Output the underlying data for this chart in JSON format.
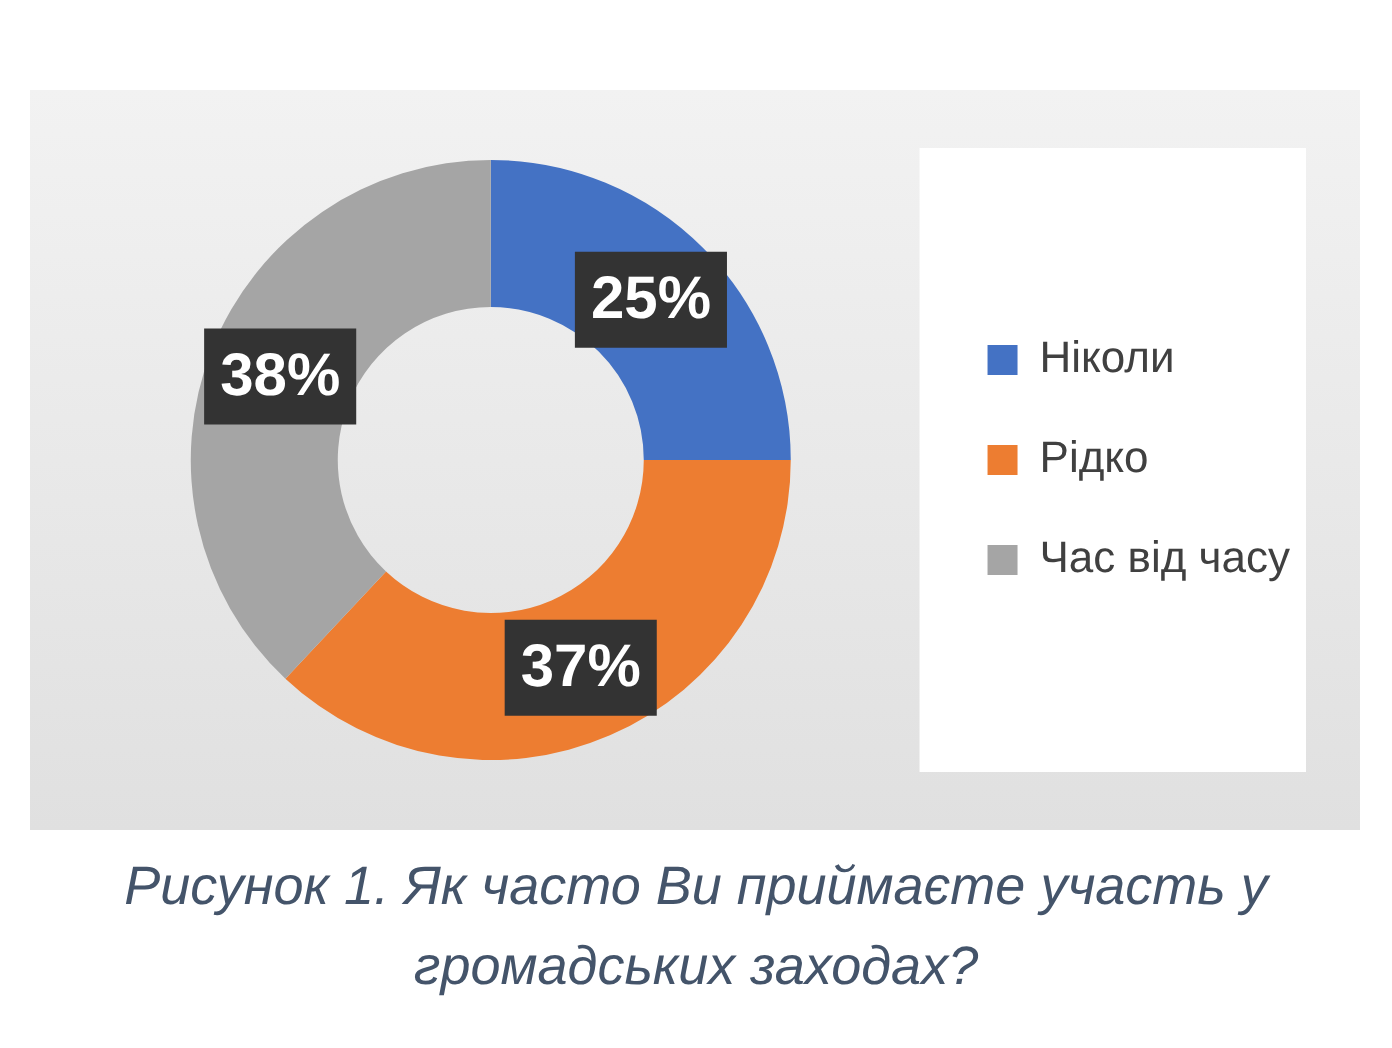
{
  "chart_data": {
    "type": "donut",
    "categories": [
      "Ніколи",
      "Рідко",
      "Час від часу"
    ],
    "values": [
      25,
      37,
      38
    ],
    "colors": [
      "#4472c4",
      "#ed7d31",
      "#a5a5a5"
    ],
    "value_labels": [
      "25%",
      "37%",
      "38%"
    ],
    "legend": "right",
    "annotations": [
      "Рисунок 1. Як часто Ви приймаєте участь у громадських заходах?"
    ]
  }
}
